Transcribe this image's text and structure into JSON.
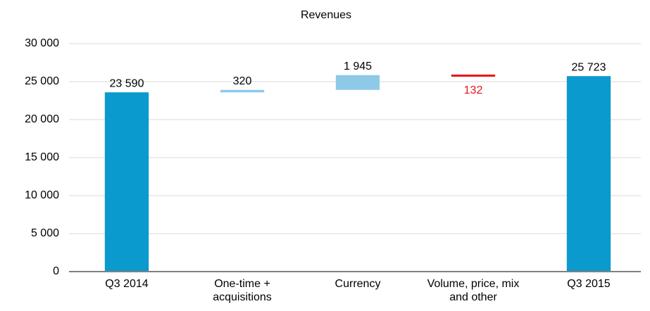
{
  "chart_data": {
    "type": "waterfall",
    "title": "Revenues",
    "categories": [
      "Q3 2014",
      "One-time + acquisitions",
      "Currency",
      "Volume, price, mix and other",
      "Q3 2015"
    ],
    "values": [
      23590,
      320,
      1945,
      -132,
      25723
    ],
    "value_labels": [
      "23 590",
      "320",
      "1 945",
      "132",
      "25 723"
    ],
    "measures": [
      "total",
      "relative",
      "relative",
      "relative",
      "total"
    ],
    "total_color": "#0a9acd",
    "increase_color": "#8ecae8",
    "decrease_color": "#e8141a",
    "ylim": [
      0,
      30000
    ],
    "yticks": [
      0,
      {
        "value": 5000,
        "label": "5 000"
      },
      {
        "value": 10000,
        "label": "10 000"
      },
      {
        "value": 15000,
        "label": "15 000"
      },
      {
        "value": 20000,
        "label": "20 000"
      },
      {
        "value": 25000,
        "label": "25 000"
      },
      {
        "value": 30000,
        "label": "30 000"
      }
    ],
    "grid": true
  }
}
